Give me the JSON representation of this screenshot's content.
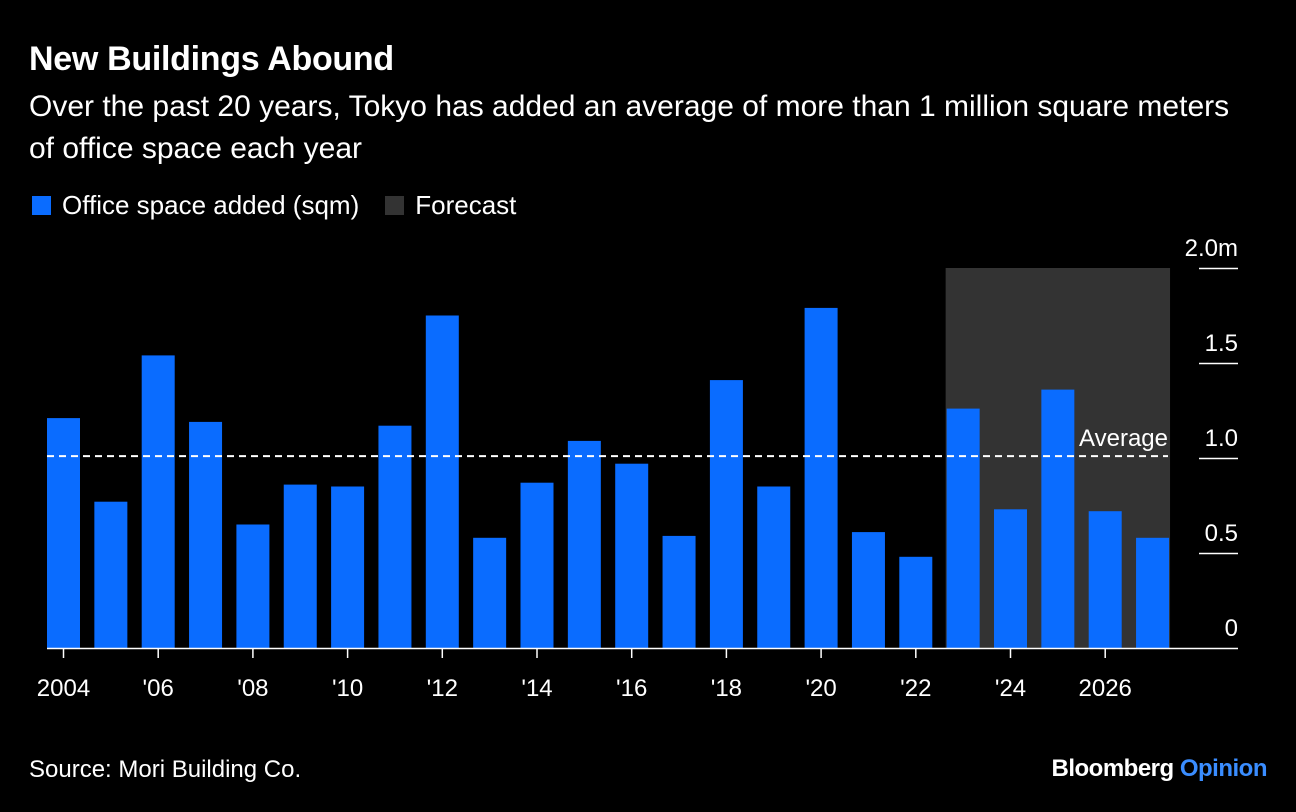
{
  "title": "New Buildings Abound",
  "subtitle": "Over the past 20 years, Tokyo has added an average of more than 1 million square meters of office space each year",
  "source": "Source: Mori Building Co.",
  "brand": {
    "name": "Bloomberg",
    "suffix": "Opinion"
  },
  "colors": {
    "bar": "#0a6cff",
    "forecast": "#333333",
    "background": "#000000",
    "text": "#ffffff"
  },
  "chart_data": {
    "type": "bar",
    "categories": [
      "2004",
      "2005",
      "2006",
      "2007",
      "2008",
      "2009",
      "2010",
      "2011",
      "2012",
      "2013",
      "2014",
      "2015",
      "2016",
      "2017",
      "2018",
      "2019",
      "2020",
      "2021",
      "2022",
      "2023",
      "2024",
      "2025",
      "2026",
      "2027"
    ],
    "series": [
      {
        "name": "Office space added (sqm)",
        "values": [
          1.21,
          0.77,
          1.54,
          1.19,
          0.65,
          0.86,
          0.85,
          1.17,
          1.75,
          0.58,
          0.87,
          1.09,
          0.97,
          0.59,
          1.41,
          0.85,
          1.79,
          0.61,
          0.48,
          1.26,
          0.73,
          1.36,
          0.72,
          0.58
        ]
      }
    ],
    "x_tick_labels": [
      "2004",
      "'06",
      "'08",
      "'10",
      "'12",
      "'14",
      "'16",
      "'18",
      "'20",
      "'22",
      "'24",
      "2026"
    ],
    "x_tick_years": [
      2004,
      2006,
      2008,
      2010,
      2012,
      2014,
      2016,
      2018,
      2020,
      2022,
      2024,
      2026
    ],
    "y_ticks": [
      0,
      0.5,
      1.0,
      1.5,
      2.0
    ],
    "y_tick_labels": [
      "0",
      "0.5",
      "1.0",
      "1.5",
      "2.0m"
    ],
    "ylim": [
      0,
      2.0
    ],
    "average": {
      "value": 1.01,
      "label": "Average"
    },
    "forecast": {
      "label": "Forecast",
      "start": "2023",
      "end": "2027"
    },
    "legend": [
      "Office space added (sqm)",
      "Forecast"
    ],
    "legend_position": "top-left",
    "y_axis_side": "right",
    "grid": false
  }
}
